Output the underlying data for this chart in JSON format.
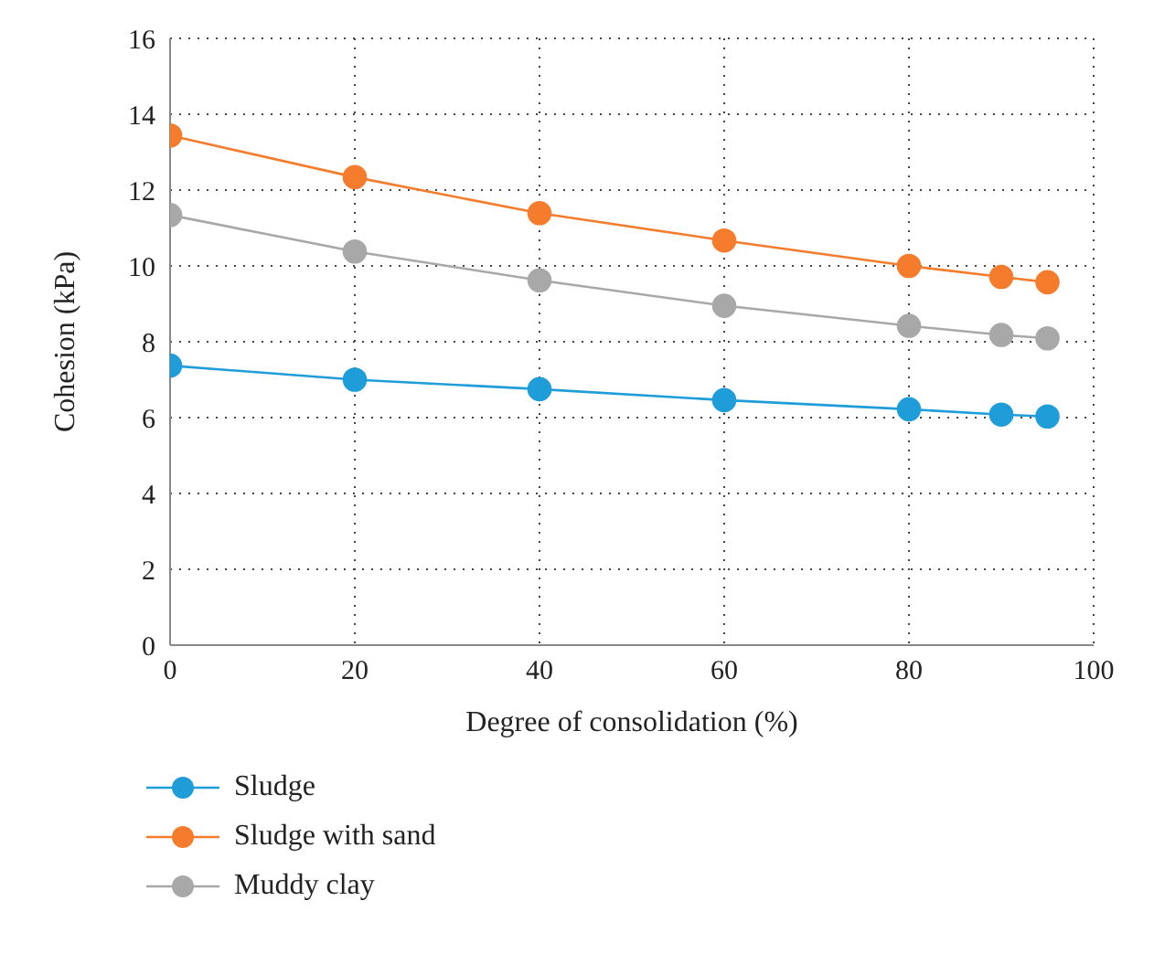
{
  "chart_data": {
    "type": "line",
    "xlabel": "Degree of consolidation (%)",
    "ylabel": "Cohesion (kPa)",
    "x": [
      0,
      20,
      40,
      60,
      80,
      90,
      95
    ],
    "series": [
      {
        "name": "Sludge",
        "color": "#1f9dd9",
        "values": [
          7.37,
          7.0,
          6.75,
          6.46,
          6.22,
          6.08,
          6.03
        ]
      },
      {
        "name": "Sludge with sand",
        "color": "#f47c2c",
        "values": [
          13.44,
          12.34,
          11.39,
          10.67,
          10.0,
          9.71,
          9.57
        ]
      },
      {
        "name": "Muddy clay",
        "color": "#a8a8a8",
        "values": [
          11.34,
          10.38,
          9.62,
          8.95,
          8.42,
          8.18,
          8.09
        ]
      }
    ],
    "xlim": [
      0,
      100
    ],
    "xticks": [
      0,
      20,
      40,
      60,
      80,
      100
    ],
    "ylim": [
      0,
      16
    ],
    "yticks": [
      0,
      2,
      4,
      6,
      8,
      10,
      12,
      14,
      16
    ],
    "grid": true,
    "legend": "bottom",
    "marker": "circle",
    "line_style": "solid"
  }
}
